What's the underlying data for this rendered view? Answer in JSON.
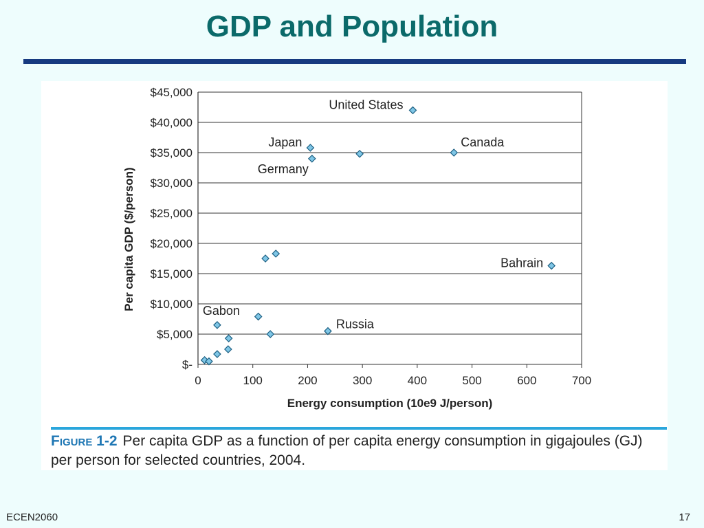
{
  "slide": {
    "title": "GDP and Population",
    "footer_left": "ECEN2060",
    "page_number": "17"
  },
  "caption": {
    "label": "Figure 1-2",
    "text": "Per capita GDP as a function of per capita energy consumption in gigajoules (GJ) per person for selected countries, 2004."
  },
  "colors": {
    "title": "#0b6a6a",
    "title_rule": "#163a80",
    "caption_rule": "#2aa6dc",
    "marker_fill": "#7fc6e6",
    "marker_stroke": "#1c5f82"
  },
  "chart_data": {
    "type": "scatter",
    "xlabel": "Energy consumption (10e9 J/person)",
    "ylabel": "Per capita GDP ($/person)",
    "xlim": [
      0,
      700
    ],
    "ylim": [
      0,
      45000
    ],
    "xticks": [
      0,
      100,
      200,
      300,
      400,
      500,
      600,
      700
    ],
    "xtick_labels": [
      "0",
      "100",
      "200",
      "300",
      "400",
      "500",
      "600",
      "700"
    ],
    "yticks": [
      0,
      5000,
      10000,
      15000,
      20000,
      25000,
      30000,
      35000,
      40000,
      45000
    ],
    "ytick_labels": [
      "$-",
      "$5,000",
      "$10,000",
      "$15,000",
      "$20,000",
      "$25,000",
      "$30,000",
      "$35,000",
      "$40,000",
      "$45,000"
    ],
    "grid": "horizontal",
    "points": [
      {
        "x": 392,
        "y": 42000,
        "label": "United States"
      },
      {
        "x": 205,
        "y": 35800,
        "label": "Japan"
      },
      {
        "x": 208,
        "y": 34000,
        "label": "Germany"
      },
      {
        "x": 295,
        "y": 34800,
        "label": ""
      },
      {
        "x": 467,
        "y": 35000,
        "label": "Canada"
      },
      {
        "x": 645,
        "y": 16300,
        "label": "Bahrain"
      },
      {
        "x": 123,
        "y": 17500,
        "label": ""
      },
      {
        "x": 142,
        "y": 18300,
        "label": ""
      },
      {
        "x": 110,
        "y": 7900,
        "label": ""
      },
      {
        "x": 35,
        "y": 6500,
        "label": "Gabon"
      },
      {
        "x": 237,
        "y": 5500,
        "label": "Russia"
      },
      {
        "x": 132,
        "y": 5000,
        "label": ""
      },
      {
        "x": 56,
        "y": 4300,
        "label": ""
      },
      {
        "x": 55,
        "y": 2500,
        "label": ""
      },
      {
        "x": 35,
        "y": 1700,
        "label": ""
      },
      {
        "x": 12,
        "y": 700,
        "label": ""
      },
      {
        "x": 20,
        "y": 500,
        "label": ""
      }
    ]
  }
}
